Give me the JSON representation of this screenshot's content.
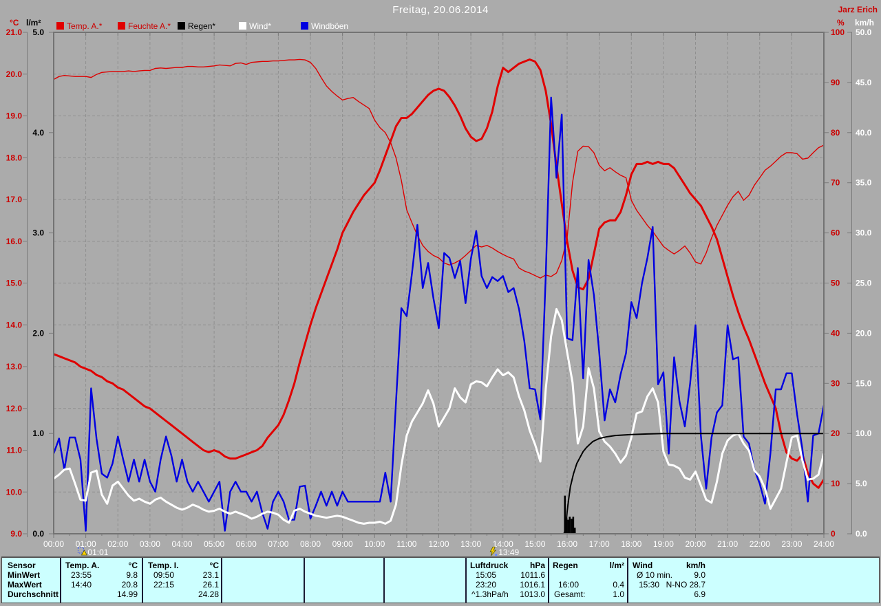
{
  "header": {
    "title": "Freitag, 20.06.2014",
    "station": "Jarz Erich"
  },
  "axis_units": {
    "left_temp": "°C",
    "left_rain": "l/m²",
    "right_hum": "%",
    "right_wind": "km/h"
  },
  "legend": {
    "items": [
      {
        "label": "Temp. A.*",
        "swatch": "#e00000",
        "text_color": "#cc0000"
      },
      {
        "label": "Feuchte A.*",
        "swatch": "#e00000",
        "text_color": "#cc0000"
      },
      {
        "label": "Regen*",
        "swatch": "#000000",
        "text_color": "#000000"
      },
      {
        "label": "Wind*",
        "swatch": "#ffffff",
        "text_color": "#ffffff"
      },
      {
        "label": "Windböen",
        "swatch": "#0000e0",
        "text_color": "#ffffff"
      }
    ]
  },
  "chart_data": {
    "type": "line",
    "title": "Freitag, 20.06.2014",
    "x": {
      "min_hour": 0,
      "max_hour": 24,
      "hour_labels": [
        "00:00",
        "01:00",
        "02:00",
        "03:00",
        "04:00",
        "05:00",
        "06:00",
        "07:00",
        "08:00",
        "09:00",
        "10:00",
        "11:00",
        "12:00",
        "13:00",
        "14:00",
        "15:00",
        "16:00",
        "17:00",
        "18:00",
        "19:00",
        "20:00",
        "21:00",
        "22:00",
        "23:00",
        "24:00"
      ]
    },
    "axes": {
      "temp": {
        "unit": "°C",
        "min": 9,
        "max": 21,
        "color": "#cc0000",
        "tick_labels": [
          "21.0",
          "20.0",
          "19.0",
          "18.0",
          "17.0",
          "16.0",
          "15.0",
          "14.0",
          "13.0",
          "12.0",
          "11.0",
          "10.0",
          "9.0"
        ]
      },
      "rain": {
        "unit": "l/m²",
        "min": 0,
        "max": 5,
        "color": "#000000",
        "tick_labels": [
          "5.0",
          "4.0",
          "3.0",
          "2.0",
          "1.0",
          "0.0"
        ]
      },
      "hum": {
        "unit": "%",
        "min": 0,
        "max": 100,
        "color": "#cc0000",
        "tick_labels": [
          "100",
          "90",
          "80",
          "70",
          "60",
          "50",
          "40",
          "30",
          "20",
          "10",
          "0"
        ]
      },
      "wind": {
        "unit": "km/h",
        "min": 0,
        "max": 50,
        "color": "#ffffff",
        "tick_labels": [
          "50.0",
          "45.0",
          "40.0",
          "35.0",
          "30.0",
          "25.0",
          "20.0",
          "15.0",
          "10.0",
          "5.0",
          "0.0"
        ]
      }
    },
    "grid": {
      "vertical_every_hours": 1,
      "horizontal_every_temp_deg": 1,
      "style": "dashed"
    },
    "series": [
      {
        "name": "Feuchte A.*",
        "axis": "hum",
        "color": "#dd0000",
        "width": 1.4,
        "t0": 0,
        "dt_min": 10,
        "values": [
          90.6,
          91.2,
          91.4,
          91.3,
          91.2,
          91.2,
          91.2,
          91.0,
          91.6,
          92.0,
          92.1,
          92.2,
          92.2,
          92.2,
          92.3,
          92.2,
          92.3,
          92.4,
          92.4,
          92.8,
          92.9,
          92.8,
          92.9,
          93.0,
          93.0,
          93.2,
          93.2,
          93.1,
          93.1,
          93.2,
          93.3,
          93.5,
          93.4,
          93.3,
          93.8,
          93.9,
          93.6,
          94.0,
          94.1,
          94.2,
          94.2,
          94.3,
          94.3,
          94.4,
          94.5,
          94.5,
          94.6,
          94.5,
          94.0,
          92.8,
          91.0,
          89.3,
          88.2,
          87.3,
          86.5,
          86.8,
          87.0,
          86.2,
          85.5,
          84.8,
          82.5,
          81.0,
          80.0,
          78.0,
          75.0,
          70.5,
          64.6,
          62.0,
          59.5,
          57.5,
          56.3,
          55.5,
          55.0,
          54.0,
          53.6,
          54.0,
          54.6,
          55.5,
          56.5,
          57.5,
          57.2,
          57.5,
          57.0,
          56.3,
          55.7,
          55.2,
          54.8,
          53.0,
          52.4,
          52.0,
          51.5,
          51.0,
          51.6,
          51.3,
          52.0,
          54.5,
          59.0,
          70.0,
          76.3,
          77.3,
          77.2,
          76.0,
          73.5,
          72.4,
          73.0,
          72.2,
          71.5,
          71.0,
          66.5,
          64.5,
          63.0,
          61.5,
          60.3,
          58.8,
          57.3,
          56.5,
          55.8,
          56.5,
          57.4,
          56.0,
          54.2,
          53.8,
          56.0,
          59.0,
          61.5,
          63.5,
          65.5,
          67.2,
          68.3,
          66.5,
          67.5,
          69.5,
          71.0,
          72.5,
          73.3,
          74.3,
          75.3,
          76.0,
          76.0,
          75.8,
          74.7,
          74.9,
          76.0,
          77.0,
          77.5
        ]
      },
      {
        "name": "Temp. A.*",
        "axis": "temp",
        "color": "#e00000",
        "width": 3,
        "t0": 0,
        "dt_min": 10,
        "values": [
          13.3,
          13.25,
          13.2,
          13.15,
          13.1,
          13.0,
          12.95,
          12.9,
          12.8,
          12.75,
          12.65,
          12.6,
          12.5,
          12.45,
          12.35,
          12.25,
          12.15,
          12.05,
          12.0,
          11.9,
          11.8,
          11.7,
          11.6,
          11.5,
          11.4,
          11.3,
          11.2,
          11.1,
          11.0,
          10.95,
          11.0,
          10.95,
          10.85,
          10.8,
          10.8,
          10.85,
          10.9,
          10.95,
          11.0,
          11.1,
          11.3,
          11.45,
          11.6,
          11.85,
          12.2,
          12.6,
          13.1,
          13.55,
          14.0,
          14.4,
          14.75,
          15.1,
          15.45,
          15.8,
          16.2,
          16.45,
          16.7,
          16.9,
          17.1,
          17.25,
          17.4,
          17.7,
          18.05,
          18.4,
          18.75,
          18.95,
          18.95,
          19.05,
          19.2,
          19.35,
          19.5,
          19.6,
          19.65,
          19.6,
          19.45,
          19.25,
          19.0,
          18.7,
          18.5,
          18.4,
          18.45,
          18.7,
          19.1,
          19.7,
          20.15,
          20.05,
          20.15,
          20.25,
          20.3,
          20.35,
          20.3,
          20.1,
          19.6,
          18.8,
          17.8,
          16.9,
          16.0,
          15.3,
          14.9,
          14.85,
          15.1,
          15.7,
          16.3,
          16.45,
          16.5,
          16.5,
          16.7,
          17.1,
          17.6,
          17.85,
          17.85,
          17.9,
          17.85,
          17.9,
          17.85,
          17.85,
          17.75,
          17.55,
          17.35,
          17.15,
          17.0,
          16.85,
          16.6,
          16.35,
          16.05,
          15.6,
          15.15,
          14.7,
          14.3,
          13.95,
          13.65,
          13.3,
          12.95,
          12.6,
          12.3,
          12.0,
          11.4,
          10.95,
          10.8,
          10.75,
          10.9,
          10.45,
          10.2,
          10.1,
          10.3
        ]
      },
      {
        "name": "Windböen",
        "axis": "wind",
        "color": "#0000e0",
        "width": 2.4,
        "t0": 0,
        "dt_min": 10,
        "values": [
          8.0,
          9.5,
          6.4,
          9.6,
          9.6,
          7.4,
          0.3,
          14.5,
          9.5,
          6.0,
          5.6,
          7.0,
          9.7,
          7.4,
          5.2,
          7.4,
          5.2,
          7.4,
          5.2,
          4.2,
          7.4,
          9.7,
          7.8,
          5.2,
          7.4,
          5.2,
          4.2,
          5.2,
          4.2,
          3.2,
          4.2,
          5.2,
          0.3,
          4.2,
          5.2,
          4.2,
          4.2,
          3.2,
          4.2,
          2.1,
          0.5,
          3.2,
          4.2,
          3.2,
          1.4,
          1.4,
          4.7,
          4.8,
          1.5,
          2.8,
          4.2,
          2.8,
          4.2,
          2.8,
          4.2,
          3.2,
          3.2,
          3.2,
          3.2,
          3.2,
          3.2,
          3.2,
          6.1,
          3.2,
          13.1,
          22.5,
          21.7,
          26.0,
          30.8,
          24.5,
          27.0,
          23.5,
          20.5,
          28.0,
          27.5,
          25.5,
          27.2,
          23.0,
          27.4,
          30.2,
          25.7,
          24.5,
          25.6,
          25.2,
          25.7,
          24.1,
          24.5,
          22.4,
          19.2,
          14.5,
          14.4,
          11.4,
          25.7,
          43.5,
          35.5,
          41.8,
          19.5,
          19.3,
          26.5,
          15.5,
          27.3,
          23.8,
          18.1,
          11.3,
          14.4,
          13.1,
          15.9,
          18.0,
          23.1,
          21.5,
          25.0,
          27.5,
          30.6,
          14.9,
          16.1,
          8.0,
          17.6,
          13.2,
          10.7,
          15.0,
          20.8,
          9.8,
          4.5,
          9.6,
          12.1,
          12.8,
          20.8,
          17.4,
          17.6,
          9.7,
          9.0,
          6.4,
          5.0,
          3.0,
          8.0,
          14.4,
          14.4,
          16.0,
          16.0,
          11.9,
          8.4,
          3.2,
          9.8,
          10.0,
          12.8
        ]
      },
      {
        "name": "Wind*",
        "axis": "wind",
        "color": "#ffffff",
        "width": 3,
        "t0": 0,
        "dt_min": 10,
        "values": [
          5.5,
          5.9,
          6.4,
          6.5,
          5.0,
          3.4,
          3.3,
          6.1,
          6.3,
          3.9,
          3.0,
          4.8,
          5.2,
          4.5,
          3.8,
          3.3,
          3.5,
          3.2,
          3.0,
          3.4,
          3.6,
          3.2,
          2.9,
          2.6,
          2.4,
          2.6,
          2.9,
          2.7,
          2.4,
          2.2,
          2.3,
          2.5,
          2.2,
          2.0,
          2.2,
          2.0,
          1.8,
          1.5,
          1.7,
          2.0,
          2.2,
          2.1,
          1.9,
          1.4,
          1.1,
          2.3,
          2.5,
          2.2,
          2.0,
          1.8,
          1.7,
          1.6,
          1.7,
          1.8,
          1.7,
          1.5,
          1.3,
          1.1,
          1.0,
          1.1,
          1.1,
          1.2,
          1.0,
          1.3,
          2.9,
          6.8,
          9.8,
          11.2,
          12.1,
          13.0,
          14.3,
          13.0,
          10.7,
          11.6,
          12.5,
          14.5,
          13.6,
          13.1,
          14.9,
          15.2,
          15.1,
          14.7,
          15.6,
          16.4,
          15.8,
          16.1,
          15.6,
          13.7,
          12.3,
          10.3,
          8.9,
          7.2,
          14.4,
          19.7,
          22.4,
          21.3,
          18.1,
          15.1,
          9.0,
          10.7,
          16.5,
          14.5,
          10.2,
          9.2,
          8.7,
          8.0,
          7.1,
          7.8,
          9.6,
          12.0,
          12.2,
          13.7,
          14.5,
          13.1,
          8.2,
          6.9,
          6.8,
          6.5,
          5.6,
          5.4,
          6.2,
          4.8,
          3.4,
          3.1,
          5.2,
          8.0,
          9.3,
          9.8,
          10.0,
          9.0,
          8.3,
          6.3,
          5.7,
          4.5,
          2.5,
          3.5,
          4.5,
          7.1,
          9.6,
          9.8,
          7.3,
          5.4,
          5.5,
          5.9,
          8.0
        ]
      },
      {
        "name": "Regen* (Summe)",
        "axis": "rain",
        "color": "#000000",
        "width": 2,
        "type": "points",
        "points": [
          [
            0,
            0
          ],
          [
            15.9,
            0
          ],
          [
            15.95,
            0.05
          ],
          [
            16.0,
            0.22
          ],
          [
            16.05,
            0.35
          ],
          [
            16.1,
            0.47
          ],
          [
            16.2,
            0.6
          ],
          [
            16.3,
            0.7
          ],
          [
            16.4,
            0.76
          ],
          [
            16.5,
            0.82
          ],
          [
            16.6,
            0.86
          ],
          [
            16.7,
            0.89
          ],
          [
            16.8,
            0.92
          ],
          [
            17.0,
            0.95
          ],
          [
            17.2,
            0.965
          ],
          [
            17.5,
            0.98
          ],
          [
            18.0,
            0.99
          ],
          [
            18.5,
            0.995
          ],
          [
            19.0,
            1.0
          ],
          [
            24,
            1.0
          ]
        ]
      },
      {
        "name": "Regen* (Intervall)",
        "axis": "rain",
        "color": "#000000",
        "type": "bars",
        "points": [
          [
            15.93,
            0.38
          ],
          [
            15.98,
            0.16
          ],
          [
            16.03,
            0.14
          ],
          [
            16.08,
            0.17
          ],
          [
            16.14,
            0.15
          ],
          [
            16.19,
            0.17
          ],
          [
            16.24,
            0.06
          ]
        ]
      }
    ],
    "markers": [
      {
        "label": "01:01",
        "hour": 1.017,
        "icon": "warning"
      },
      {
        "label": "13:49",
        "hour": 13.817,
        "icon": "lightning"
      }
    ]
  },
  "table": {
    "row_labels": [
      "Sensor",
      "MinWert",
      "MaxWert",
      "Durchschnitt"
    ],
    "temp_a": {
      "name": "Temp. A.",
      "unit": "°C",
      "min_time": "23:55",
      "min_value": "9.8",
      "max_time": "14:40",
      "max_value": "20.8",
      "avg_label": "",
      "avg": "14.99"
    },
    "temp_i": {
      "name": "Temp. I.",
      "unit": "°C",
      "min_time": "09:50",
      "min_value": "23.1",
      "max_time": "22:15",
      "max_value": "26.1",
      "avg_label": "",
      "avg": "24.28"
    },
    "luftdruck": {
      "name": "Luftdruck",
      "unit": "hPa",
      "min_time": "15:05",
      "min_value": "1011.6",
      "max_time": "23:20",
      "max_value": "1016.1",
      "avg_label": "^1.3hPa/h",
      "avg": "1013.0"
    },
    "regen": {
      "name": "Regen",
      "unit": "l/m²",
      "min_time": "",
      "min_value": "",
      "max_time": "16:00",
      "max_value": "0.4",
      "avg_label": "Gesamt:",
      "avg": "1.0"
    },
    "wind": {
      "name": "Wind",
      "unit": "km/h",
      "min_time": "Ø 10 min.",
      "min_value": "9.0",
      "max_time": "15:30",
      "max_value": "N-NO 28.7",
      "avg_label": "",
      "avg": "6.9"
    }
  }
}
